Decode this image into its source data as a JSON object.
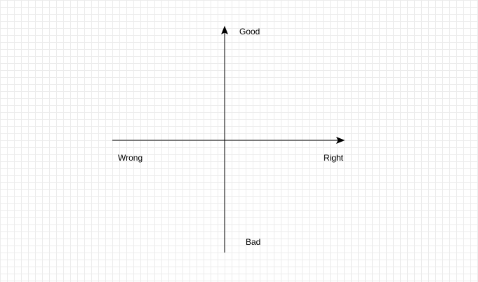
{
  "diagram": {
    "axes": {
      "vertical": {
        "top_label": "Good",
        "bottom_label": "Bad"
      },
      "horizontal": {
        "left_label": "Wrong",
        "right_label": "Right"
      }
    },
    "grid": true,
    "colors": {
      "background": "#ffffff",
      "grid": "#ececec",
      "axis": "#000000",
      "text": "#000000"
    }
  }
}
